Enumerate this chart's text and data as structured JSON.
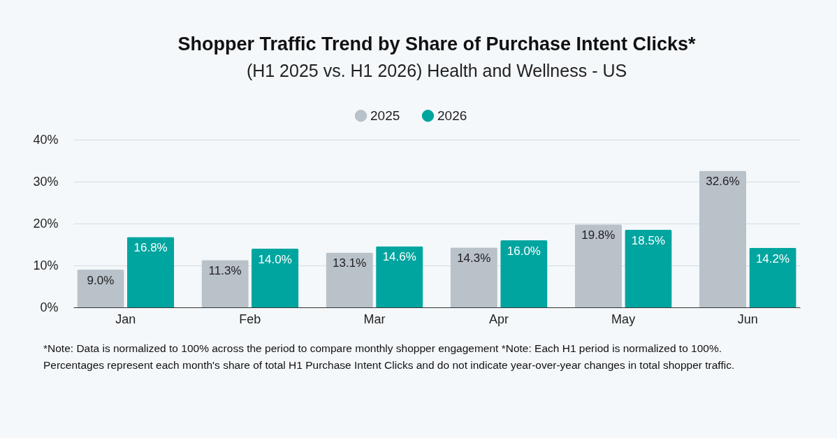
{
  "chart_data": {
    "type": "bar",
    "title": "Shopper Traffic Trend by Share of Purchase Intent Clicks*",
    "subtitle": "(H1 2025 vs. H1 2026) Health and Wellness - US",
    "categories": [
      "Jan",
      "Feb",
      "Mar",
      "Apr",
      "May",
      "Jun"
    ],
    "series": [
      {
        "name": "2025",
        "color": "#b9c1c9",
        "values": [
          9.0,
          11.3,
          13.1,
          14.3,
          19.8,
          32.6
        ],
        "value_labels": [
          "9.0%",
          "11.3%",
          "13.1%",
          "14.3%",
          "19.8%",
          "32.6%"
        ]
      },
      {
        "name": "2026",
        "color": "#00a59f",
        "values": [
          16.8,
          14.0,
          14.6,
          16.0,
          18.5,
          14.2
        ],
        "value_labels": [
          "16.8%",
          "14.0%",
          "14.6%",
          "16.0%",
          "18.5%",
          "14.2%"
        ]
      }
    ],
    "ylim": [
      0,
      40
    ],
    "yticks": [
      {
        "value": 0,
        "label": "0%"
      },
      {
        "value": 10,
        "label": "10%"
      },
      {
        "value": 20,
        "label": "20%"
      },
      {
        "value": 30,
        "label": "30%"
      },
      {
        "value": 40,
        "label": "40%"
      }
    ],
    "grid": "y",
    "legend": "top",
    "annotations": [
      "*Note: Data is normalized to 100% across the period to compare monthly shopper engagement *Note: Each H1 period is normalized to 100%.",
      "Percentages represent each month's share of total H1 Purchase Intent Clicks and do not indicate year-over-year changes in total shopper traffic."
    ]
  }
}
